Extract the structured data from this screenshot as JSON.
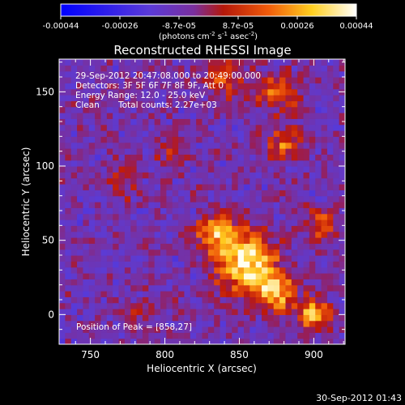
{
  "colorbar": {
    "tick_labels": [
      "-0.00044",
      "-0.00026",
      "-8.7e-05",
      "8.7e-05",
      "0.00026",
      "0.00044"
    ],
    "units_main": "(photons cm",
    "units_sup1": "-2",
    "units_mid": " s",
    "units_sup2": "-1",
    "units_end": " asec",
    "units_sup3": "-2",
    "units_close": ")"
  },
  "title": "Reconstructed RHESSI Image",
  "annotations": {
    "line1": "29-Sep-2012 20:47:08.000 to 20:49:00.000",
    "line2": "Detectors: 3F 5F 6F 7F 8F 9F, Att 0",
    "line3": "Energy Range: 12.0 - 25.0 keV",
    "line4_a": "Clean",
    "line4_b": "Total counts: 2.27e+03",
    "peak": "Position of Peak = [858,27]"
  },
  "timestamp": "30-Sep-2012 01:43",
  "chart_data": {
    "type": "heatmap",
    "xlabel": "Heliocentric X (arcsec)",
    "ylabel": "Heliocentric Y (arcsec)",
    "xlim": [
      729,
      921
    ],
    "ylim": [
      -20,
      172
    ],
    "x_ticks": [
      750,
      800,
      850,
      900
    ],
    "x_tick_labels": [
      "750",
      "800",
      "850",
      "900"
    ],
    "y_ticks": [
      0,
      50,
      100,
      150
    ],
    "y_tick_labels": [
      "0",
      "50",
      "100",
      "150"
    ],
    "colorscale_range": [
      -0.00044,
      0.00044
    ],
    "peak_position": [
      858,
      27
    ],
    "grid_size": 48,
    "blobs": [
      {
        "x": 855,
        "y": 35,
        "amp": 1.0,
        "sigma": 14
      },
      {
        "x": 875,
        "y": 15,
        "amp": 0.7,
        "sigma": 9
      },
      {
        "x": 900,
        "y": 0,
        "amp": 0.9,
        "sigma": 7
      },
      {
        "x": 835,
        "y": 55,
        "amp": 0.7,
        "sigma": 9
      },
      {
        "x": 880,
        "y": 115,
        "amp": 0.55,
        "sigma": 8
      },
      {
        "x": 875,
        "y": 150,
        "amp": 0.5,
        "sigma": 10
      },
      {
        "x": 840,
        "y": 160,
        "amp": 0.45,
        "sigma": 10
      },
      {
        "x": 905,
        "y": 60,
        "amp": 0.5,
        "sigma": 8
      },
      {
        "x": 770,
        "y": 90,
        "amp": 0.35,
        "sigma": 8
      },
      {
        "x": 805,
        "y": 110,
        "amp": 0.3,
        "sigma": 7
      },
      {
        "x": 785,
        "y": 0,
        "amp": 0.3,
        "sigma": 6
      }
    ]
  }
}
